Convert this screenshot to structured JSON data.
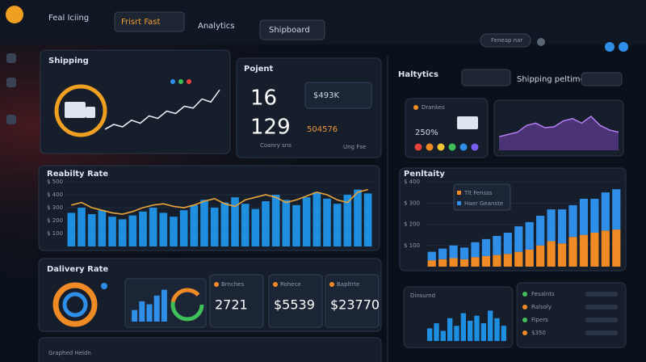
{
  "nav": {
    "brand": "Feal Iciing",
    "tabs": [
      "Frisrt Fast",
      "Analytics",
      "Shipboard"
    ],
    "search": "Feneap nar"
  },
  "shipping": {
    "title": "Shipping",
    "line": [
      20,
      28,
      24,
      35,
      30,
      42,
      38,
      50,
      46,
      58,
      55,
      70,
      65,
      85
    ],
    "ylim": [
      0,
      100
    ],
    "color": "#e8edf5"
  },
  "kpi": {
    "title": "Pojent",
    "first": "16",
    "second": "129",
    "box": "$493K",
    "highlight": "504576",
    "caption_left": "Coanry sns",
    "caption_right": "Ung Fse"
  },
  "analytics": {
    "title": "Haltytics",
    "tab": "Shipping peltime"
  },
  "status": {
    "label": "Drankes",
    "value": "250%",
    "dots": [
      "#e8413c",
      "#f08a24",
      "#f5c531",
      "#3fbf5a",
      "#2f8fe8",
      "#7a5cf0"
    ]
  },
  "trend": {
    "values": [
      30,
      35,
      40,
      55,
      60,
      50,
      52,
      65,
      70,
      60,
      75,
      55,
      45,
      40
    ],
    "ylim": [
      0,
      100
    ],
    "color": "#8a4fd0"
  },
  "reliability": {
    "title": "Reabilty Rate",
    "ylim": [
      0,
      500
    ],
    "yticks": [
      {
        "value": 100,
        "label": "$ 100"
      },
      {
        "value": 200,
        "label": "$ 200"
      },
      {
        "value": 300,
        "label": "$ 300"
      },
      {
        "value": 400,
        "label": "$ 400"
      },
      {
        "value": 500,
        "label": "$ 500"
      }
    ],
    "bars": [
      260,
      300,
      250,
      280,
      230,
      210,
      240,
      270,
      300,
      260,
      230,
      280,
      320,
      360,
      300,
      340,
      380,
      330,
      290,
      350,
      400,
      360,
      320,
      380,
      420,
      370,
      330,
      400,
      440,
      410
    ],
    "line": [
      320,
      340,
      300,
      280,
      260,
      250,
      270,
      300,
      320,
      330,
      310,
      300,
      320,
      350,
      370,
      330,
      310,
      360,
      380,
      400,
      380,
      340,
      360,
      390,
      420,
      400,
      360,
      340,
      420,
      440
    ],
    "bar_color": "#1e8fe0",
    "line_color": "#e8a33a"
  },
  "penalty": {
    "title": "Penltaity",
    "ylim": [
      0,
      400
    ],
    "yticks": [
      {
        "value": 100,
        "label": "$ 100"
      },
      {
        "value": 200,
        "label": "$ 200"
      },
      {
        "value": 300,
        "label": "$ 300"
      },
      {
        "value": 400,
        "label": "$ 400"
      }
    ],
    "series": [
      {
        "name": "Tlt Fensss",
        "color": "#f08a24",
        "values": [
          30,
          35,
          40,
          35,
          45,
          50,
          55,
          60,
          70,
          80,
          100,
          120,
          110,
          140,
          150,
          160,
          170,
          175
        ]
      },
      {
        "name": "Haer Geanste",
        "color": "#2f8fe8",
        "values": [
          40,
          50,
          60,
          55,
          70,
          80,
          90,
          100,
          120,
          130,
          140,
          150,
          160,
          150,
          170,
          160,
          180,
          190
        ]
      }
    ]
  },
  "delivery": {
    "title": "Dalivery Rate",
    "bars": [
      20,
      35,
      30,
      45,
      55
    ],
    "ylim": [
      0,
      60
    ],
    "cards": [
      {
        "label": "Brnches",
        "value": "2721"
      },
      {
        "label": "Rohece",
        "value": "$5539"
      },
      {
        "label": "Bapltrte",
        "value": "$23770"
      }
    ]
  },
  "volume": {
    "title": "Dinsumd",
    "bars": [
      10,
      14,
      8,
      18,
      12,
      22,
      16,
      20,
      14,
      24,
      18,
      12
    ],
    "ylim": [
      0,
      30
    ]
  },
  "list": {
    "rows": [
      "Fesalnts",
      "Ralsoly",
      "Fipers",
      "$350"
    ]
  },
  "footer": {
    "label": "Graphed Heldn"
  }
}
